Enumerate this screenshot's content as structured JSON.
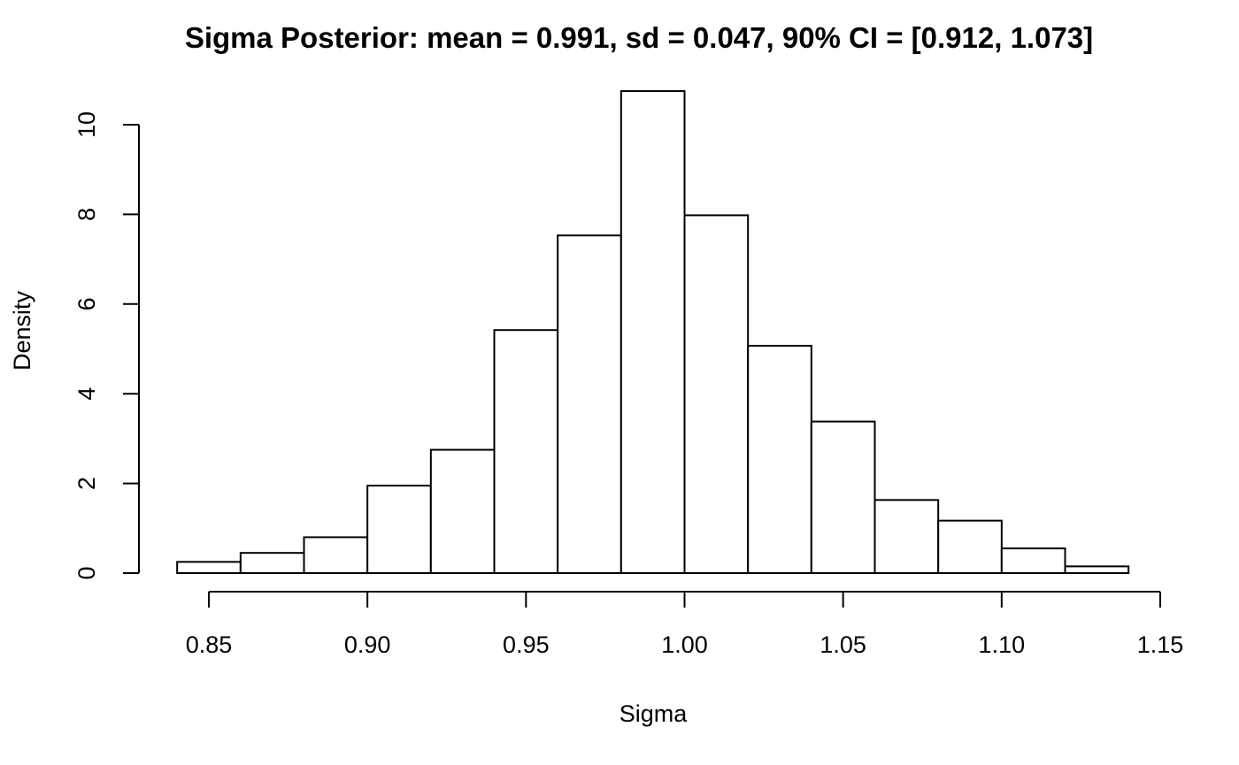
{
  "chart_data": {
    "type": "bar",
    "title": "Sigma Posterior: mean = 0.991, sd = 0.047, 90% CI = [0.912, 1.073]",
    "xlabel": "Sigma",
    "ylabel": "Density",
    "bin_edges": [
      0.84,
      0.86,
      0.88,
      0.9,
      0.92,
      0.94,
      0.96,
      0.98,
      1.0,
      1.02,
      1.04,
      1.06,
      1.08,
      1.1,
      1.12,
      1.14
    ],
    "values": [
      0.25,
      0.45,
      0.8,
      1.95,
      2.75,
      5.42,
      7.53,
      10.75,
      7.98,
      5.07,
      3.38,
      1.63,
      1.17,
      0.55,
      0.15
    ],
    "xlim": [
      0.85,
      1.15
    ],
    "ylim": [
      0,
      10
    ],
    "x_ticks": [
      {
        "value": 0.85,
        "label": "0.85"
      },
      {
        "value": 0.9,
        "label": "0.90"
      },
      {
        "value": 0.95,
        "label": "0.95"
      },
      {
        "value": 1.0,
        "label": "1.00"
      },
      {
        "value": 1.05,
        "label": "1.05"
      },
      {
        "value": 1.1,
        "label": "1.10"
      },
      {
        "value": 1.15,
        "label": "1.15"
      }
    ],
    "y_ticks": [
      {
        "value": 0,
        "label": "0"
      },
      {
        "value": 2,
        "label": "2"
      },
      {
        "value": 4,
        "label": "4"
      },
      {
        "value": 6,
        "label": "6"
      },
      {
        "value": 8,
        "label": "8"
      },
      {
        "value": 10,
        "label": "10"
      }
    ],
    "grid": false,
    "bar_fill": "#ffffff",
    "bar_stroke": "#000000"
  }
}
